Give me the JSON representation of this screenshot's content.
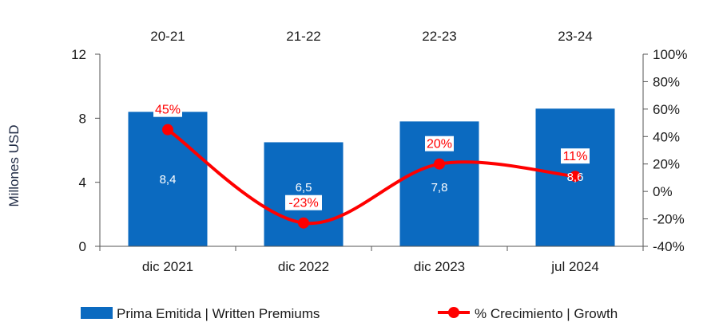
{
  "chart_data": {
    "type": "bar",
    "categories": [
      "dic 2021",
      "dic 2022",
      "dic 2023",
      "jul 2024"
    ],
    "periods": [
      "20-21",
      "21-22",
      "22-23",
      "23-24"
    ],
    "ylabel": "Millones USD",
    "ylim": [
      0,
      12
    ],
    "y_ticks": [
      "0",
      "4",
      "8",
      "12"
    ],
    "y2lim": [
      -40,
      100
    ],
    "y2_ticks": [
      "-40%",
      "-20%",
      "0%",
      "20%",
      "40%",
      "60%",
      "80%",
      "100%"
    ],
    "series": [
      {
        "name": "Prima Emitida | Written Premiums",
        "type": "bar",
        "axis": "left",
        "values": [
          8.4,
          6.5,
          7.8,
          8.6
        ],
        "labels": [
          "8,4",
          "6,5",
          "7,8",
          "8,6"
        ],
        "color": "#0b6ac0"
      },
      {
        "name": "% Crecimiento | Growth",
        "type": "line",
        "axis": "right",
        "values": [
          45,
          -23,
          20,
          11
        ],
        "labels": [
          "45%",
          "-23%",
          "20%",
          "11%"
        ],
        "color": "#ff0000"
      }
    ],
    "legend": "bottom",
    "grid": false
  }
}
